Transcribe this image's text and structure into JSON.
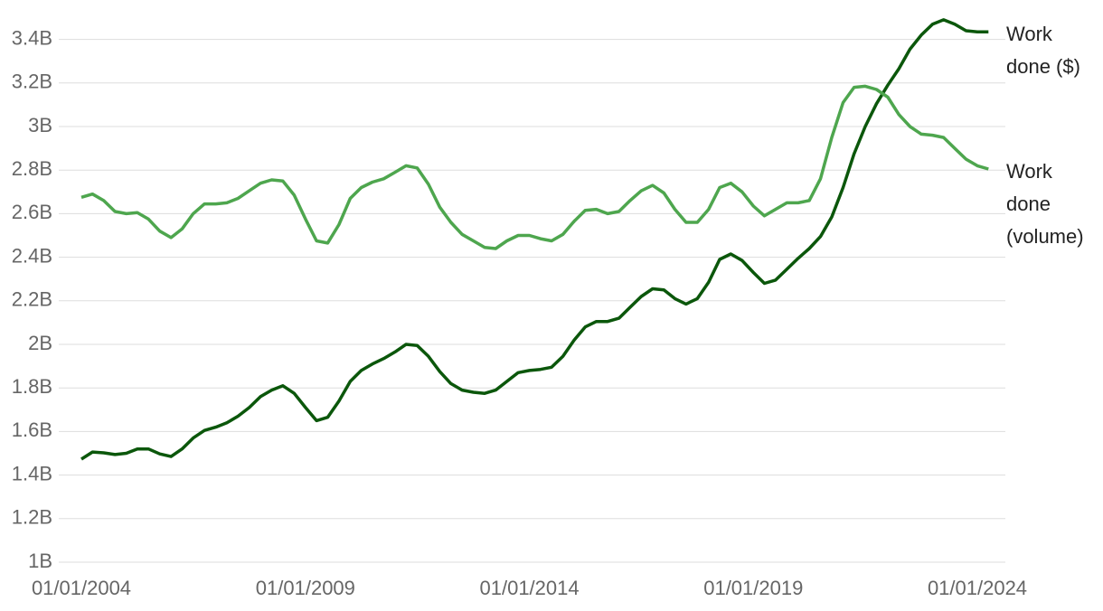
{
  "chart_data": {
    "type": "line",
    "x": [
      "2004-01-01",
      "2004-04-01",
      "2004-07-01",
      "2004-10-01",
      "2005-01-01",
      "2005-04-01",
      "2005-07-01",
      "2005-10-01",
      "2006-01-01",
      "2006-04-01",
      "2006-07-01",
      "2006-10-01",
      "2007-01-01",
      "2007-04-01",
      "2007-07-01",
      "2007-10-01",
      "2008-01-01",
      "2008-04-01",
      "2008-07-01",
      "2008-10-01",
      "2009-01-01",
      "2009-04-01",
      "2009-07-01",
      "2009-10-01",
      "2010-01-01",
      "2010-04-01",
      "2010-07-01",
      "2010-10-01",
      "2011-01-01",
      "2011-04-01",
      "2011-07-01",
      "2011-10-01",
      "2012-01-01",
      "2012-04-01",
      "2012-07-01",
      "2012-10-01",
      "2013-01-01",
      "2013-04-01",
      "2013-07-01",
      "2013-10-01",
      "2014-01-01",
      "2014-04-01",
      "2014-07-01",
      "2014-10-01",
      "2015-01-01",
      "2015-04-01",
      "2015-07-01",
      "2015-10-01",
      "2016-01-01",
      "2016-04-01",
      "2016-07-01",
      "2016-10-01",
      "2017-01-01",
      "2017-04-01",
      "2017-07-01",
      "2017-10-01",
      "2018-01-01",
      "2018-04-01",
      "2018-07-01",
      "2018-10-01",
      "2019-01-01",
      "2019-04-01",
      "2019-07-01",
      "2019-10-01",
      "2020-01-01",
      "2020-04-01",
      "2020-07-01",
      "2020-10-01",
      "2021-01-01",
      "2021-04-01",
      "2021-07-01",
      "2021-10-01",
      "2022-01-01",
      "2022-04-01",
      "2022-07-01",
      "2022-10-01",
      "2023-01-01",
      "2023-04-01",
      "2023-07-01",
      "2023-10-01",
      "2024-01-01",
      "2024-04-01"
    ],
    "series": [
      {
        "name": "Work done ($)",
        "color": "#0b570b",
        "values": [
          1.473,
          1.506,
          1.502,
          1.494,
          1.5,
          1.52,
          1.52,
          1.497,
          1.485,
          1.52,
          1.57,
          1.605,
          1.62,
          1.64,
          1.67,
          1.71,
          1.76,
          1.79,
          1.81,
          1.775,
          1.71,
          1.65,
          1.665,
          1.74,
          1.83,
          1.88,
          1.91,
          1.935,
          1.965,
          2.0,
          1.995,
          1.945,
          1.875,
          1.82,
          1.79,
          1.78,
          1.775,
          1.79,
          1.83,
          1.87,
          1.88,
          1.885,
          1.895,
          1.945,
          2.02,
          2.08,
          2.105,
          2.105,
          2.12,
          2.17,
          2.22,
          2.255,
          2.25,
          2.21,
          2.185,
          2.21,
          2.285,
          2.39,
          2.415,
          2.385,
          2.33,
          2.28,
          2.295,
          2.345,
          2.395,
          2.44,
          2.495,
          2.585,
          2.72,
          2.875,
          3.0,
          3.105,
          3.19,
          3.265,
          3.355,
          3.42,
          3.47,
          3.49,
          3.47,
          3.44,
          3.435,
          3.435
        ]
      },
      {
        "name": "Work done (volume)",
        "color": "#4ea64e",
        "values": [
          2.675,
          2.69,
          2.66,
          2.61,
          2.6,
          2.605,
          2.575,
          2.52,
          2.49,
          2.53,
          2.6,
          2.645,
          2.645,
          2.65,
          2.67,
          2.705,
          2.74,
          2.755,
          2.75,
          2.685,
          2.575,
          2.475,
          2.465,
          2.55,
          2.67,
          2.72,
          2.745,
          2.76,
          2.79,
          2.82,
          2.81,
          2.735,
          2.63,
          2.56,
          2.505,
          2.475,
          2.445,
          2.44,
          2.475,
          2.5,
          2.5,
          2.485,
          2.475,
          2.505,
          2.565,
          2.615,
          2.62,
          2.6,
          2.61,
          2.66,
          2.705,
          2.73,
          2.695,
          2.62,
          2.56,
          2.56,
          2.62,
          2.72,
          2.74,
          2.7,
          2.635,
          2.59,
          2.62,
          2.65,
          2.65,
          2.66,
          2.76,
          2.95,
          3.11,
          3.18,
          3.185,
          3.17,
          3.135,
          3.055,
          3.0,
          2.965,
          2.96,
          2.95,
          2.9,
          2.85,
          2.82,
          2.805
        ]
      }
    ],
    "ylim": [
      1,
      3.5
    ],
    "yticks": [
      {
        "value": 1,
        "label": "1B"
      },
      {
        "value": 1.2,
        "label": "1.2B"
      },
      {
        "value": 1.4,
        "label": "1.4B"
      },
      {
        "value": 1.6,
        "label": "1.6B"
      },
      {
        "value": 1.8,
        "label": "1.8B"
      },
      {
        "value": 2,
        "label": "2B"
      },
      {
        "value": 2.2,
        "label": "2.2B"
      },
      {
        "value": 2.4,
        "label": "2.4B"
      },
      {
        "value": 2.6,
        "label": "2.6B"
      },
      {
        "value": 2.8,
        "label": "2.8B"
      },
      {
        "value": 3,
        "label": "3B"
      },
      {
        "value": 3.2,
        "label": "3.2B"
      },
      {
        "value": 3.4,
        "label": "3.4B"
      }
    ],
    "xticks": [
      {
        "value": "2004-01-01",
        "label": "01/01/2004"
      },
      {
        "value": "2009-01-01",
        "label": "01/01/2009"
      },
      {
        "value": "2014-01-01",
        "label": "01/01/2014"
      },
      {
        "value": "2019-01-01",
        "label": "01/01/2019"
      },
      {
        "value": "2024-01-01",
        "label": "01/01/2024"
      }
    ],
    "grid": true
  }
}
